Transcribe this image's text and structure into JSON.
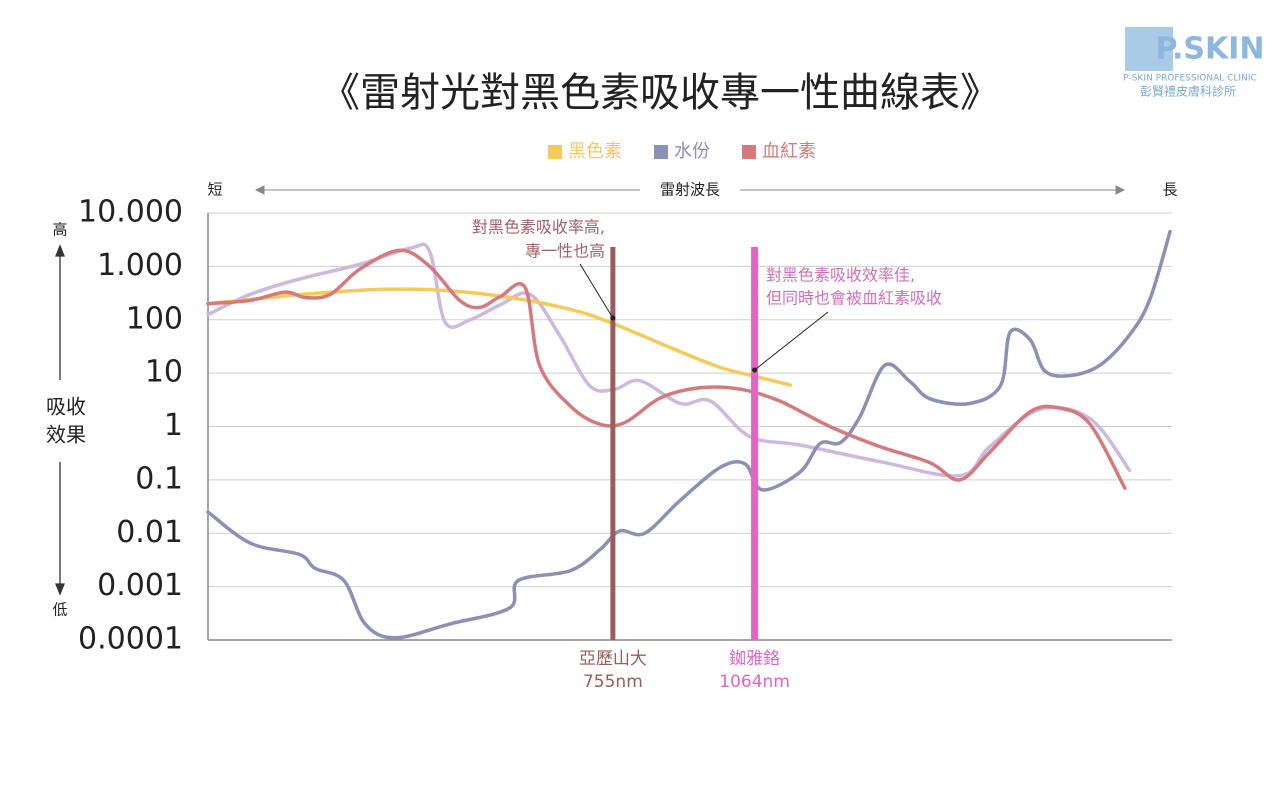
{
  "chart_data": {
    "type": "line",
    "title": "《雷射光對黑色素吸收專一性曲線表》",
    "brand": {
      "name": "P.SKIN",
      "tagline": "P-SKIN PROFESSIONAL CLINIC",
      "clinic": "彭賢禮皮膚科診所"
    },
    "x_axis": {
      "label": "雷射波長",
      "start_label": "短",
      "end_label": "長"
    },
    "y_axis": {
      "label_lines": [
        "吸收",
        "效果"
      ],
      "top_label": "高",
      "bottom_label": "低"
    },
    "yscale": "log",
    "grid": true,
    "xlim": [
      0,
      100
    ],
    "ylim": [
      0.0001,
      10000
    ],
    "yticks": [
      {
        "value": 10000,
        "label": "10.000"
      },
      {
        "value": 1000,
        "label": "1.000"
      },
      100,
      10,
      1,
      0.1,
      0.01,
      0.001,
      0.0001
    ],
    "series": [
      {
        "name": "黑色素",
        "color": "#f5c95a",
        "x": [
          0,
          10,
          18,
          25,
          32,
          38,
          42,
          48,
          53,
          57,
          60.4
        ],
        "values": [
          200,
          300,
          370,
          350,
          250,
          150,
          85,
          30,
          13,
          8.5,
          6
        ]
      },
      {
        "name": "水份",
        "color": "#8b90b5",
        "x": [
          0,
          4.4,
          9.5,
          11.1,
          14.1,
          16.3,
          19.4,
          25.1,
          31.3,
          32.2,
          37.6,
          40.7,
          42.7,
          45.3,
          48.9,
          53.1,
          55.7,
          57.5,
          61.4,
          63.5,
          65.6,
          67.6,
          70.2,
          72.8,
          74.9,
          79.0,
          82.2,
          83.2,
          85.3,
          86.8,
          89.4,
          92.5,
          95.6,
          97.7,
          99.8
        ],
        "values": [
          0.025,
          0.0065,
          0.004,
          0.0022,
          0.0013,
          0.0002,
          0.00011,
          0.0002,
          0.0004,
          0.0013,
          0.002,
          0.005,
          0.011,
          0.01,
          0.04,
          0.17,
          0.2,
          0.065,
          0.14,
          0.48,
          0.5,
          1.5,
          14,
          7,
          3.3,
          2.7,
          5.8,
          58,
          42,
          11,
          9,
          14,
          52,
          240,
          4500
        ]
      },
      {
        "name": "血紅素",
        "color": "#d47a7c",
        "x": [
          0,
          4.4,
          8.0,
          10.1,
          12.7,
          15.8,
          19.9,
          23.0,
          26.1,
          28.2,
          30.3,
          32.9,
          34.4,
          37.6,
          40.7,
          43.3,
          46.9,
          51.0,
          55.2,
          59.3,
          64.5,
          69.7,
          74.9,
          78.0,
          81.1,
          85.3,
          88.4,
          91.5,
          95.1
        ],
        "values": [
          200,
          230,
          330,
          260,
          300,
          900,
          2000,
          1000,
          230,
          170,
          270,
          400,
          14,
          2.4,
          1.1,
          1.2,
          3.4,
          5.3,
          5,
          3,
          1,
          0.42,
          0.21,
          0.1,
          0.33,
          1.9,
          2.2,
          1.1,
          0.07
        ]
      },
      {
        "color": "#cdb8de",
        "x": [
          0,
          4.4,
          9.5,
          15.8,
          21.0,
          23.0,
          24.6,
          27.2,
          30.3,
          33.4,
          36.5,
          39.6,
          42.2,
          44.8,
          49.0,
          52.1,
          56.2,
          61.4,
          69.7,
          78.0,
          81.1,
          86.3,
          91.5,
          95.6
        ],
        "values": [
          125,
          300,
          580,
          1100,
          2200,
          1900,
          90,
          100,
          190,
          300,
          50,
          5.8,
          5,
          7.2,
          2.7,
          3,
          0.65,
          0.45,
          0.22,
          0.12,
          0.42,
          2.1,
          1.4,
          0.15
        ]
      }
    ],
    "markers": [
      {
        "label": "亞歷山大",
        "sublabel": "755nm",
        "x": 42.0,
        "color": "#9a5c5c"
      },
      {
        "label": "銣雅鉻",
        "sublabel": "1064nm",
        "x": 56.7,
        "color": "#e264c4"
      }
    ],
    "annotations": [
      {
        "lines": [
          "對黑色素吸收率高,",
          "專一性也高"
        ],
        "color": "#a0606a"
      },
      {
        "lines": [
          "對黑色素吸收效率佳,",
          "但同時也會被血紅素吸收"
        ],
        "color": "#d070b8"
      }
    ]
  }
}
